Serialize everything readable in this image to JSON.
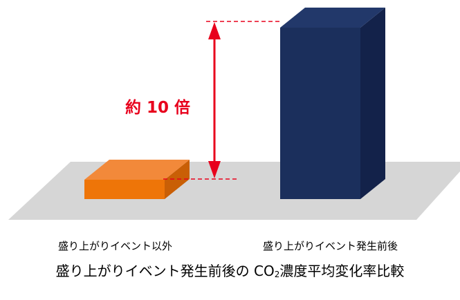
{
  "chart_data": {
    "type": "bar",
    "categories": [
      "盛り上がりイベント以外",
      "盛り上がりイベント発生前後"
    ],
    "values": [
      1,
      10
    ],
    "annotation": "約 10 倍",
    "title_prefix": "盛り上がりイベント発生前後の CO",
    "title_sub": "2",
    "title_suffix": "濃度平均変化率比較"
  },
  "colors": {
    "bar1_front": "#EE7508",
    "bar1_top": "#F2893A",
    "bar1_side": "#C95F06",
    "bar2_front": "#1B2F5C",
    "bar2_top": "#22386A",
    "bar2_side": "#13224A",
    "floor": "#D6D6D6",
    "annotation": "#E8001C"
  }
}
